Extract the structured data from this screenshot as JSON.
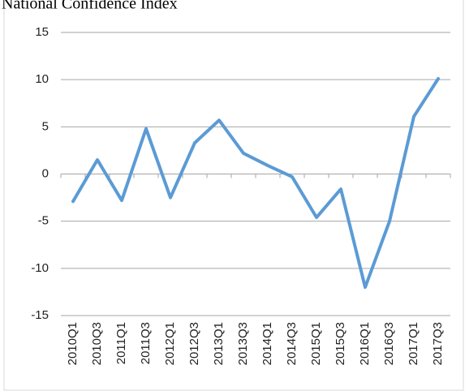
{
  "chart_data": {
    "type": "line",
    "title": "National Confidence Index",
    "categories": [
      "2010Q1",
      "2010Q3",
      "2011Q1",
      "2011Q3",
      "2012Q1",
      "2012Q3",
      "2013Q1",
      "2013Q3",
      "2014Q1",
      "2014Q3",
      "2015Q1",
      "2015Q3",
      "2016Q1",
      "2016Q3",
      "2017Q1",
      "2017Q3"
    ],
    "values": [
      -2.9,
      1.5,
      -2.8,
      4.8,
      -2.5,
      3.3,
      5.7,
      2.2,
      0.9,
      -0.3,
      -4.6,
      -1.6,
      -12,
      -5,
      6.1,
      10.1
    ],
    "color": "#5b9bd5",
    "ylim": [
      -15,
      15
    ],
    "yticks": [
      -15,
      -10,
      -5,
      0,
      5,
      10,
      15
    ],
    "grid": true
  }
}
